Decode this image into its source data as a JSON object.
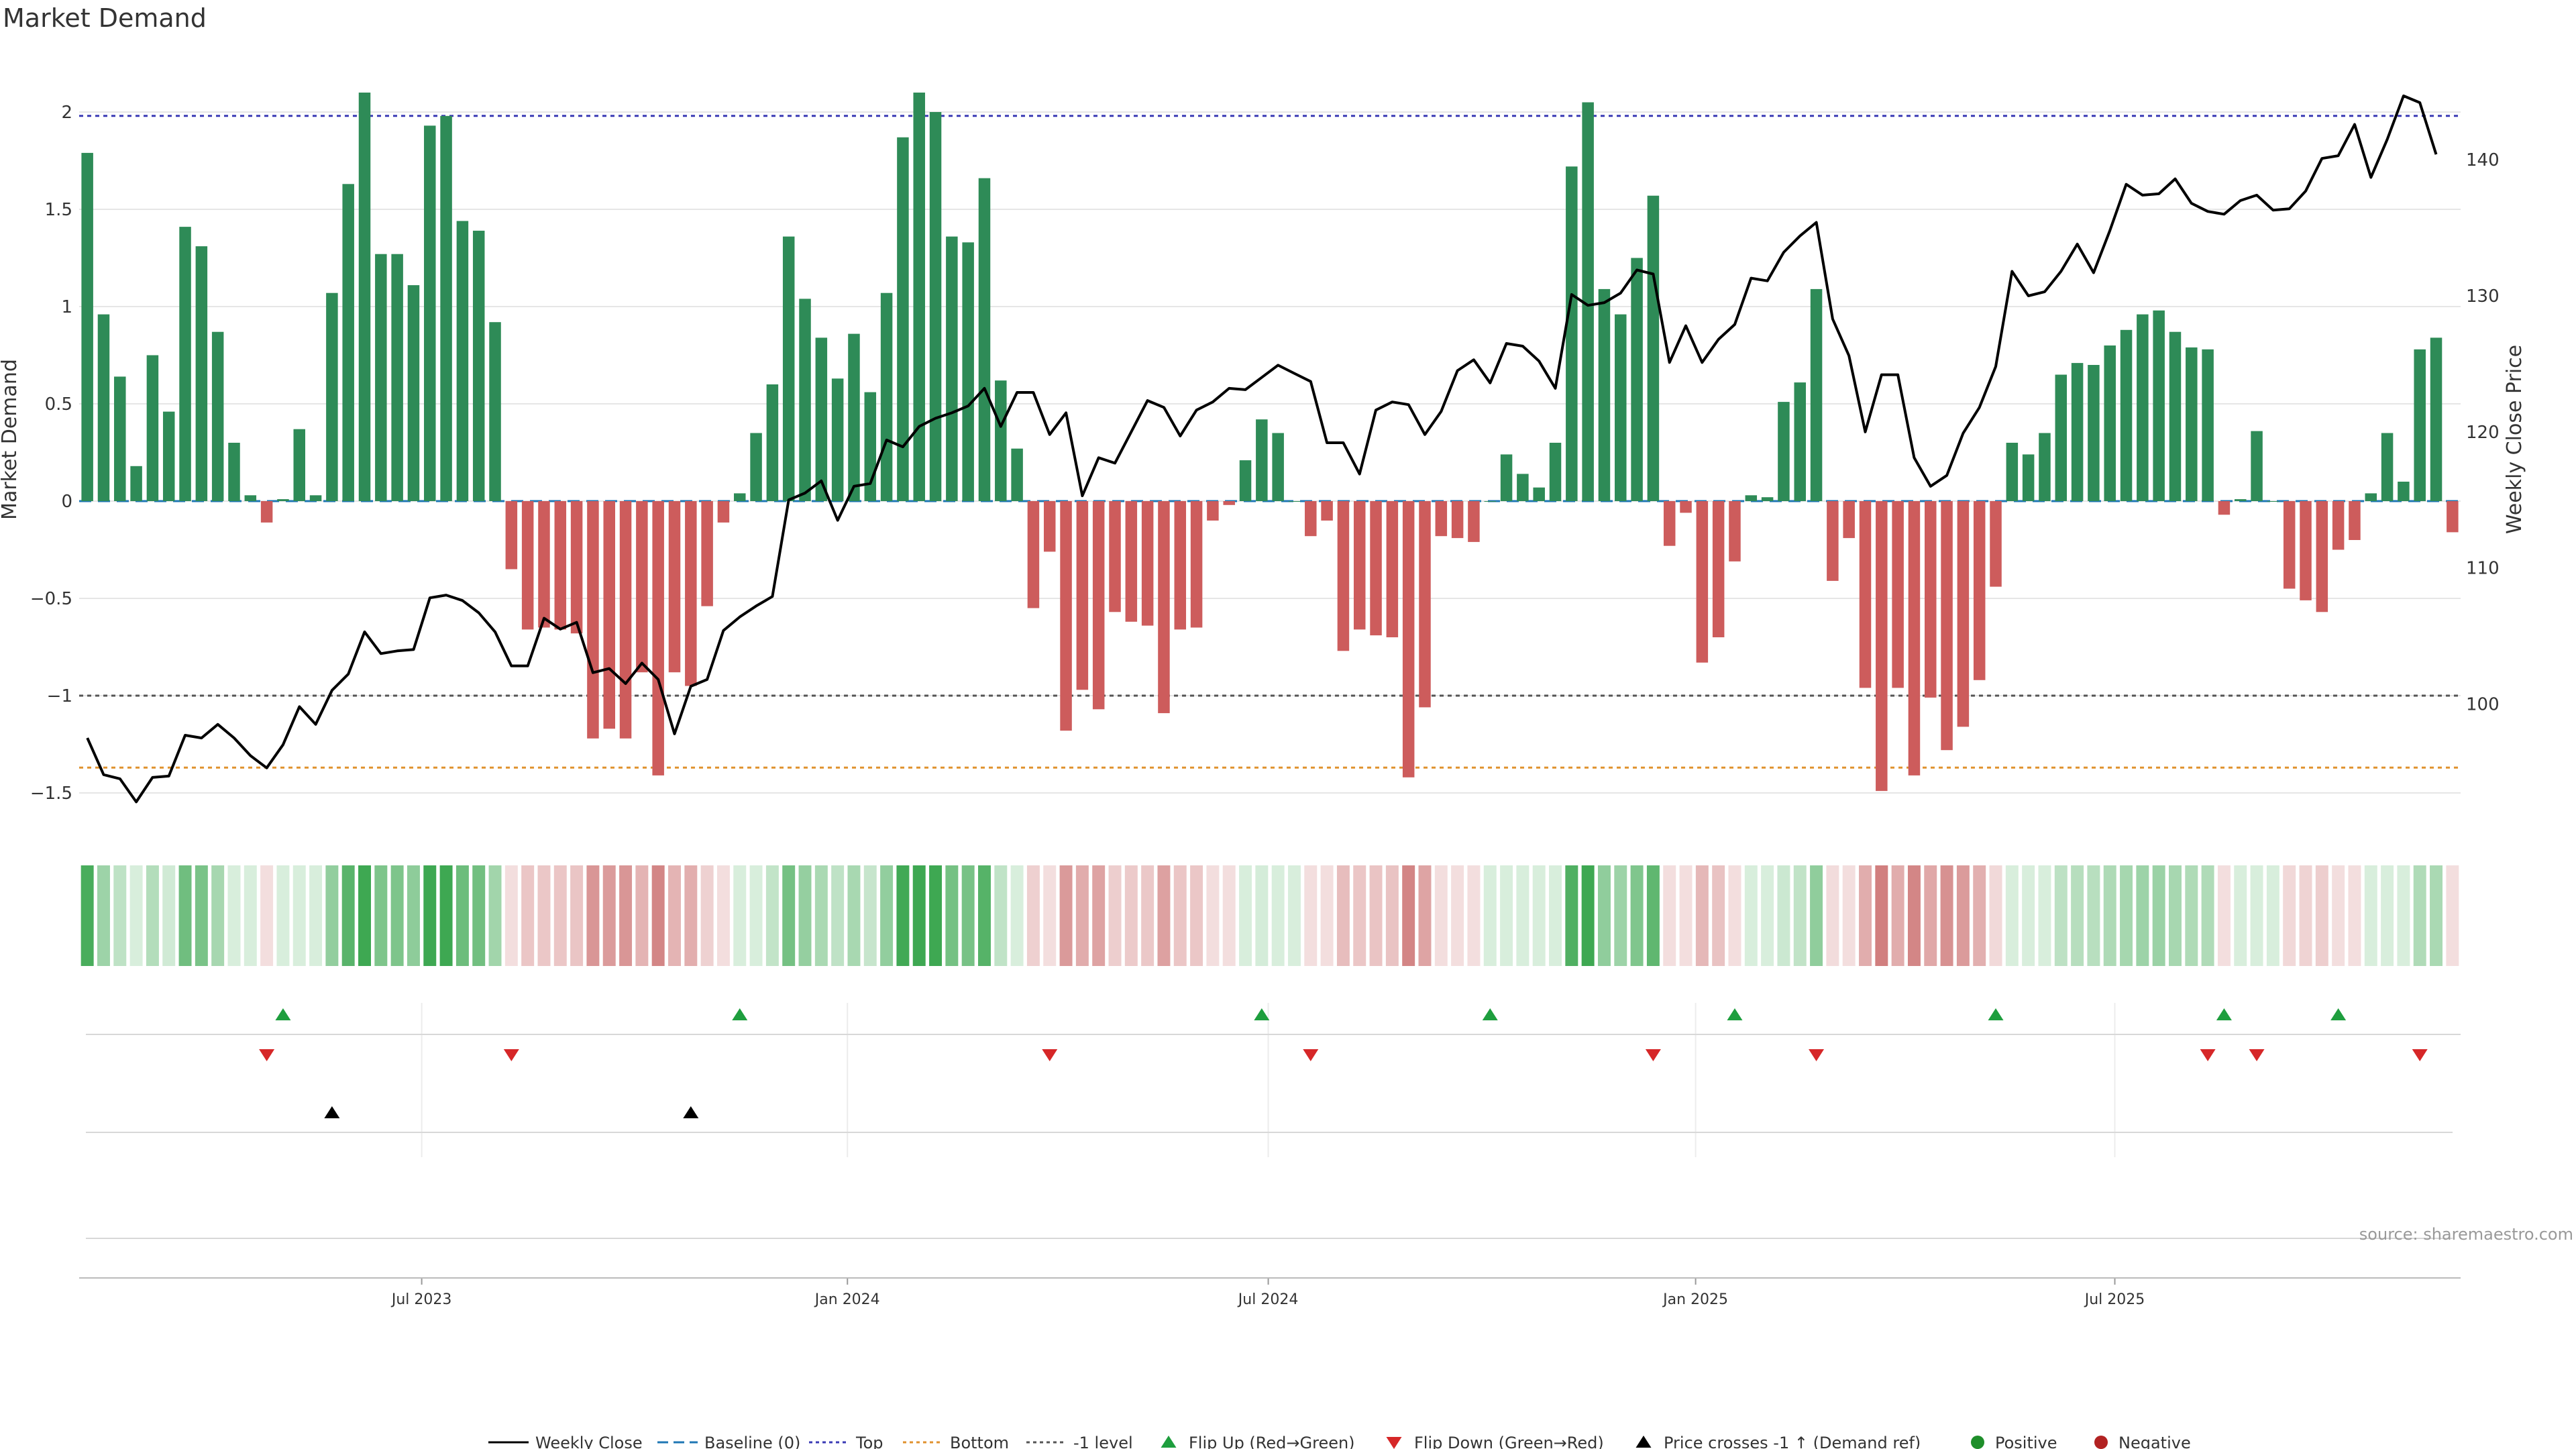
{
  "chart_data": {
    "type": "bar",
    "title": "Market Demand",
    "ylabel": "Market Demand",
    "y2label": "Weekly Close Price",
    "ylim": [
      -1.7,
      2.3
    ],
    "y2lim": [
      90.6,
      147.8
    ],
    "yticks": [
      -1.5,
      -1,
      -0.5,
      0,
      0.5,
      1,
      1.5,
      2
    ],
    "yticklabels": [
      "−1.5",
      "−1",
      "−0.5",
      "0",
      "0.5",
      "1",
      "1.5",
      "2"
    ],
    "y2ticks": [
      100,
      110,
      120,
      130,
      140
    ],
    "y2ticklabels": [
      "100",
      "110",
      "120",
      "130",
      "140"
    ],
    "top_level": 1.98,
    "neg1_level": -1.0,
    "bottom_level": -1.37,
    "xticklabels": [
      {
        "label": "Jul 2023",
        "index": 20.5
      },
      {
        "label": "Jan 2024",
        "index": 46.6
      },
      {
        "label": "Jul 2024",
        "index": 72.4
      },
      {
        "label": "Jan 2025",
        "index": 98.6
      },
      {
        "label": "Jul 2025",
        "index": 124.3
      }
    ],
    "demand": [
      1.79,
      0.96,
      0.64,
      0.18,
      0.75,
      0.46,
      1.41,
      1.31,
      0.87,
      0.3,
      0.03,
      -0.11,
      0.01,
      0.37,
      0.03,
      1.07,
      1.63,
      2.1,
      1.27,
      1.27,
      1.11,
      1.93,
      1.98,
      1.44,
      1.39,
      0.92,
      -0.35,
      -0.66,
      -0.65,
      -0.66,
      -0.68,
      -1.22,
      -1.17,
      -1.22,
      -0.88,
      -1.41,
      -0.88,
      -0.95,
      -0.54,
      -0.11,
      0.04,
      0.35,
      0.6,
      1.36,
      1.04,
      0.84,
      0.63,
      0.86,
      0.56,
      1.07,
      1.87,
      2.1,
      2.0,
      1.36,
      1.33,
      1.66,
      0.62,
      0.27,
      -0.55,
      -0.26,
      -1.18,
      -0.97,
      -1.07,
      -0.57,
      -0.62,
      -0.64,
      -1.09,
      -0.66,
      -0.65,
      -0.1,
      -0.02,
      0.21,
      0.42,
      0.35,
      0.0,
      -0.18,
      -0.1,
      -0.77,
      -0.66,
      -0.69,
      -0.7,
      -1.42,
      -1.06,
      -0.18,
      -0.19,
      -0.21,
      0.0,
      0.24,
      0.14,
      0.07,
      0.3,
      1.72,
      2.05,
      1.09,
      0.96,
      1.25,
      1.57,
      -0.23,
      -0.06,
      -0.83,
      -0.7,
      -0.31,
      0.03,
      0.02,
      0.51,
      0.61,
      1.09,
      -0.41,
      -0.19,
      -0.96,
      -1.49,
      -0.96,
      -1.41,
      -1.01,
      -1.28,
      -1.16,
      -0.92,
      -0.44,
      0.3,
      0.24,
      0.35,
      0.65,
      0.71,
      0.7,
      0.8,
      0.88,
      0.96,
      0.98,
      0.87,
      0.79,
      0.78,
      -0.07,
      0.01,
      0.36,
      0.0,
      -0.45,
      -0.51,
      -0.57,
      -0.25,
      -0.2,
      0.04,
      0.35,
      0.1,
      0.78,
      0.84,
      -0.16
    ],
    "close": [
      97.5,
      94.8,
      94.5,
      92.8,
      94.6,
      94.7,
      97.7,
      97.5,
      98.5,
      97.5,
      96.2,
      95.3,
      97.0,
      99.8,
      98.5,
      101.0,
      102.2,
      105.3,
      103.7,
      103.9,
      104.0,
      107.8,
      108.0,
      107.6,
      106.7,
      105.3,
      102.8,
      102.8,
      106.3,
      105.5,
      106.0,
      102.3,
      102.6,
      101.5,
      103.0,
      101.8,
      97.8,
      101.3,
      101.8,
      105.4,
      106.4,
      107.2,
      107.9,
      115.0,
      115.5,
      116.4,
      113.5,
      116.0,
      116.2,
      119.4,
      118.9,
      120.4,
      121.0,
      121.4,
      121.9,
      123.2,
      120.4,
      122.9,
      122.9,
      119.8,
      121.4,
      115.3,
      118.1,
      117.7,
      120.0,
      122.3,
      121.8,
      119.7,
      121.6,
      122.2,
      123.2,
      123.1,
      124.0,
      124.9,
      124.3,
      123.7,
      119.2,
      119.2,
      116.9,
      121.6,
      122.2,
      122.0,
      119.8,
      121.5,
      124.5,
      125.3,
      123.6,
      126.5,
      126.3,
      125.2,
      123.2,
      130.1,
      129.3,
      129.5,
      130.2,
      131.9,
      131.6,
      125.1,
      127.8,
      125.1,
      126.8,
      127.9,
      131.3,
      131.1,
      133.2,
      134.4,
      135.4,
      128.3,
      125.6,
      120.0,
      124.2,
      124.2,
      118.1,
      116.0,
      116.8,
      119.9,
      121.8,
      124.8,
      131.8,
      130.0,
      130.3,
      131.8,
      133.8,
      131.7,
      134.8,
      138.2,
      137.4,
      137.5,
      138.6,
      136.8,
      136.2,
      136.0,
      137.0,
      137.4,
      136.3,
      136.4,
      137.7,
      140.1,
      140.3,
      142.6,
      138.7,
      141.5,
      144.7,
      144.2,
      140.4
    ],
    "flip_up": [
      12,
      40,
      72,
      86,
      101,
      117,
      131,
      138
    ],
    "flip_down": [
      11,
      26,
      59,
      75,
      96,
      106,
      130,
      133,
      143
    ],
    "price_crosses": [
      15,
      37
    ],
    "legend": [
      "Weekly Close",
      "Baseline (0)",
      "Top",
      "Bottom",
      "-1 level",
      "Flip Up (Red→Green)",
      "Flip Down (Green→Red)",
      "Price crosses -1 ↑ (Demand ref)",
      "Positive",
      "Negative"
    ],
    "source": "source: sharemaestro.com",
    "colors": {
      "pos_bar": "#2e8b57",
      "neg_bar": "#cd5c5c",
      "line": "#000000",
      "top": "#3b3bb5",
      "bottom": "#e0922f",
      "neg1": "#555555",
      "baseline": "#1f77b4",
      "flip_up": "#1e9e3e",
      "flip_down": "#d62728",
      "cross": "#000000",
      "positive": "#1e8e2a",
      "negative": "#b22222",
      "grid": "#e6e6e6",
      "axis": "#cccccc"
    }
  }
}
